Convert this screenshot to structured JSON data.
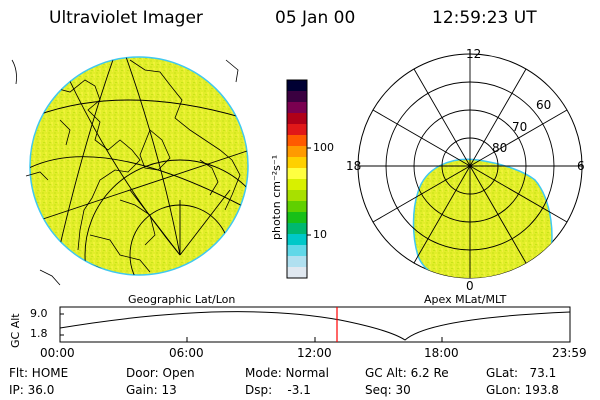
{
  "header": {
    "title": "Ultraviolet Imager",
    "date": "05 Jan 00",
    "time": "12:59:23 UT"
  },
  "colorbar": {
    "ticks": [
      "100",
      "10"
    ],
    "label": "photon cm⁻²s⁻¹",
    "colors": [
      "#000033",
      "#3a0040",
      "#7a0050",
      "#b00018",
      "#e01818",
      "#ff5a00",
      "#ff9a00",
      "#ffd000",
      "#ffff40",
      "#d8f000",
      "#a8e000",
      "#60d000",
      "#18c018",
      "#00b870",
      "#00c8c8",
      "#60d8e8",
      "#b0e0f0",
      "#e0e8f0"
    ]
  },
  "geo_panel": {
    "label": "Geographic Lat/Lon"
  },
  "polar_panel": {
    "label": "Apex MLat/MLT",
    "mlt_labels": {
      "top": "12",
      "left": "18",
      "right": "6",
      "bottom": "0"
    },
    "lat_labels": [
      "60",
      "70",
      "80"
    ]
  },
  "timeline": {
    "ylabel": "GC Alt",
    "yticks": [
      "9.0",
      "1.8"
    ],
    "xticks": [
      "00:00",
      "06:00",
      "12:00",
      "18:00",
      "23:59"
    ],
    "current_time_color": "#ff0000"
  },
  "info": {
    "flt": "Flt: HOME",
    "ip": "IP: 36.0",
    "door": "Door: Open",
    "gain": "Gain: 13",
    "mode": "Mode: Normal",
    "dsp": "Dsp:    -3.1",
    "gcalt": "GC Alt: 6.2 Re",
    "seq": "Seq: 30",
    "glat": "GLat:   73.1",
    "glon": "GLon: 193.8"
  },
  "colors": {
    "emission": "#e4f028",
    "emission_edge": "#40c8f0",
    "marker": "#ff0000"
  }
}
